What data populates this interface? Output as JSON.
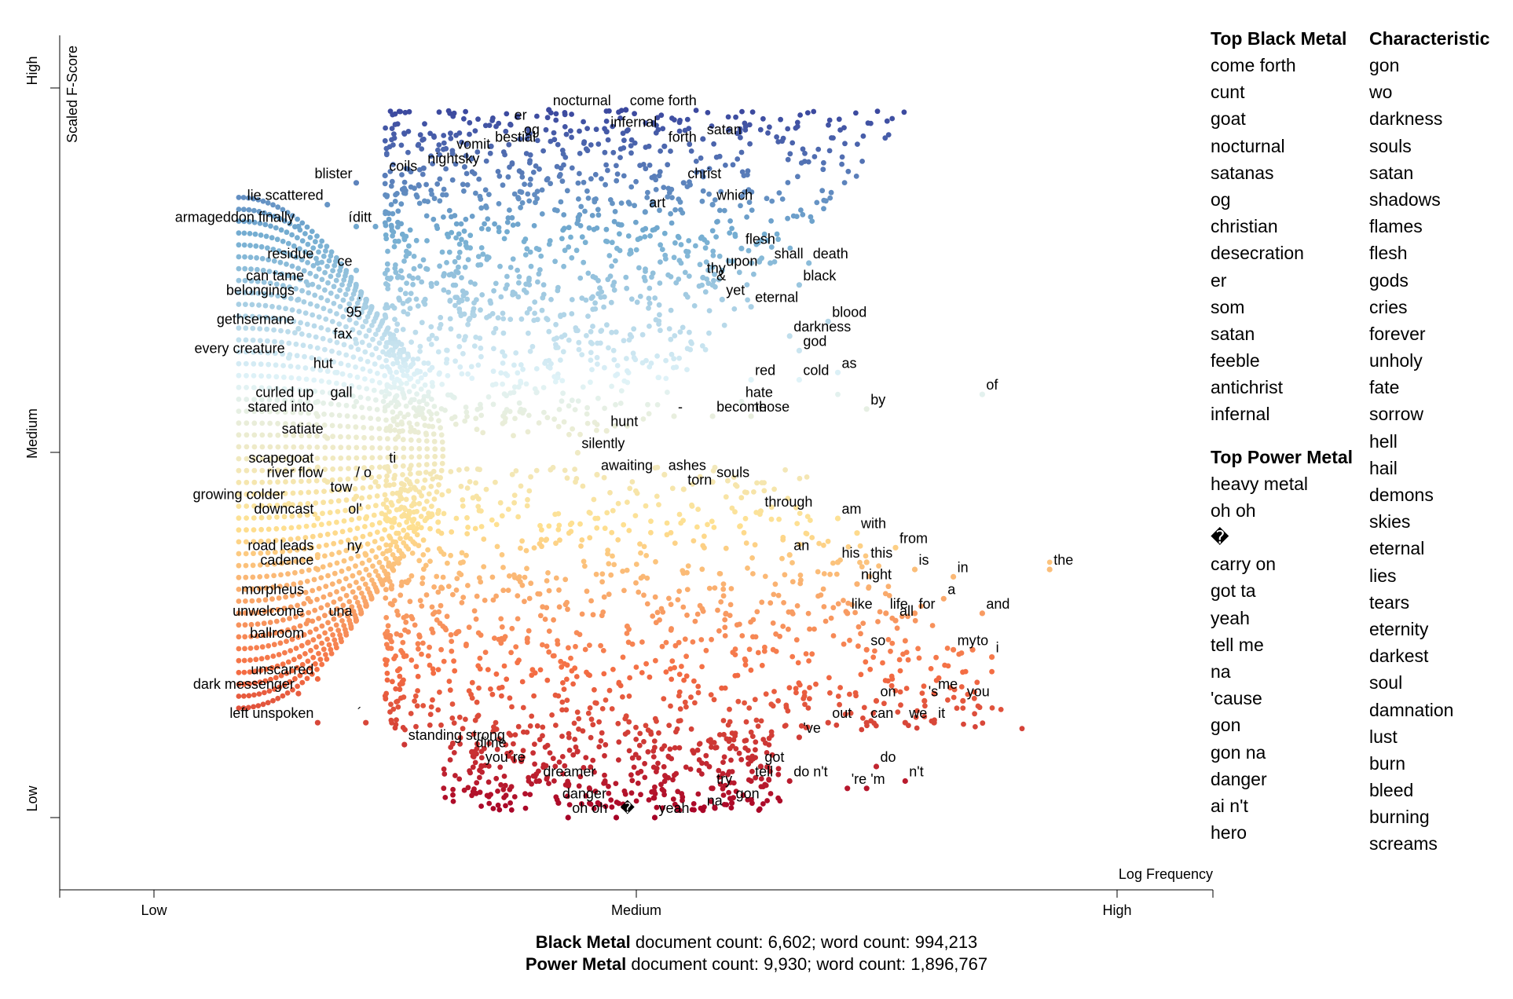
{
  "chart_data": {
    "type": "scatter",
    "xlabel": "Log Frequency",
    "ylabel": "Scaled F-Score",
    "x_ticks": [
      "Low",
      "Medium",
      "High"
    ],
    "y_ticks": [
      "Low",
      "Medium",
      "High"
    ],
    "xlim": [
      0,
      1
    ],
    "ylim": [
      0,
      1
    ],
    "color_scale": [
      "#a50026",
      "#f46d43",
      "#fee090",
      "#e0f3f8",
      "#74add1",
      "#313695"
    ],
    "labeled_points": [
      {
        "term": "nocturnal",
        "x": 0.41,
        "y": 0.97
      },
      {
        "term": "come forth",
        "x": 0.49,
        "y": 0.97
      },
      {
        "term": "er",
        "x": 0.37,
        "y": 0.95
      },
      {
        "term": "infernal",
        "x": 0.47,
        "y": 0.94
      },
      {
        "term": "vomit",
        "x": 0.31,
        "y": 0.91
      },
      {
        "term": "bestial",
        "x": 0.35,
        "y": 0.92
      },
      {
        "term": "og",
        "x": 0.38,
        "y": 0.93
      },
      {
        "term": "forth",
        "x": 0.53,
        "y": 0.92
      },
      {
        "term": "satan",
        "x": 0.57,
        "y": 0.93
      },
      {
        "term": "nightsky",
        "x": 0.28,
        "y": 0.89
      },
      {
        "term": "coils",
        "x": 0.24,
        "y": 0.88
      },
      {
        "term": "blister",
        "x": 0.21,
        "y": 0.87
      },
      {
        "term": "christ",
        "x": 0.55,
        "y": 0.87
      },
      {
        "term": "lie scattered",
        "x": 0.18,
        "y": 0.84
      },
      {
        "term": "which",
        "x": 0.58,
        "y": 0.84
      },
      {
        "term": "art",
        "x": 0.51,
        "y": 0.83
      },
      {
        "term": "armageddon finally",
        "x": 0.15,
        "y": 0.81
      },
      {
        "term": "í",
        "x": 0.21,
        "y": 0.81
      },
      {
        "term": "ditt",
        "x": 0.23,
        "y": 0.81
      },
      {
        "term": "residue",
        "x": 0.17,
        "y": 0.76
      },
      {
        "term": "ce",
        "x": 0.21,
        "y": 0.75
      },
      {
        "term": "flesh",
        "x": 0.61,
        "y": 0.78
      },
      {
        "term": "upon",
        "x": 0.59,
        "y": 0.75
      },
      {
        "term": "shall",
        "x": 0.64,
        "y": 0.76
      },
      {
        "term": "death",
        "x": 0.68,
        "y": 0.76
      },
      {
        "term": "thy",
        "x": 0.57,
        "y": 0.74
      },
      {
        "term": "can tame",
        "x": 0.16,
        "y": 0.73
      },
      {
        "term": "&",
        "x": 0.58,
        "y": 0.73
      },
      {
        "term": "black",
        "x": 0.67,
        "y": 0.73
      },
      {
        "term": "belongings",
        "x": 0.15,
        "y": 0.71
      },
      {
        "term": "·",
        "x": 0.22,
        "y": 0.7
      },
      {
        "term": "yet",
        "x": 0.59,
        "y": 0.71
      },
      {
        "term": "eternal",
        "x": 0.62,
        "y": 0.7
      },
      {
        "term": "gethsemane",
        "x": 0.15,
        "y": 0.67
      },
      {
        "term": "95",
        "x": 0.22,
        "y": 0.68
      },
      {
        "term": "blood",
        "x": 0.7,
        "y": 0.68
      },
      {
        "term": "darkness",
        "x": 0.66,
        "y": 0.66
      },
      {
        "term": "fax",
        "x": 0.21,
        "y": 0.65
      },
      {
        "term": "every creature",
        "x": 0.14,
        "y": 0.63
      },
      {
        "term": "god",
        "x": 0.67,
        "y": 0.64
      },
      {
        "term": "as",
        "x": 0.71,
        "y": 0.61
      },
      {
        "term": "hut",
        "x": 0.19,
        "y": 0.61
      },
      {
        "term": "red",
        "x": 0.62,
        "y": 0.6
      },
      {
        "term": "cold",
        "x": 0.67,
        "y": 0.6
      },
      {
        "term": "of",
        "x": 0.86,
        "y": 0.58
      },
      {
        "term": "curled up",
        "x": 0.17,
        "y": 0.57
      },
      {
        "term": "gall",
        "x": 0.21,
        "y": 0.57
      },
      {
        "term": "hate",
        "x": 0.61,
        "y": 0.57
      },
      {
        "term": "by",
        "x": 0.74,
        "y": 0.56
      },
      {
        "term": "stared into",
        "x": 0.17,
        "y": 0.55
      },
      {
        "term": "-",
        "x": 0.54,
        "y": 0.55
      },
      {
        "term": "become",
        "x": 0.58,
        "y": 0.55
      },
      {
        "term": "those",
        "x": 0.62,
        "y": 0.55
      },
      {
        "term": "hunt",
        "x": 0.47,
        "y": 0.53
      },
      {
        "term": "satiate",
        "x": 0.18,
        "y": 0.52
      },
      {
        "term": "silently",
        "x": 0.44,
        "y": 0.5
      },
      {
        "term": "scapegoat",
        "x": 0.17,
        "y": 0.48
      },
      {
        "term": "awaiting",
        "x": 0.46,
        "y": 0.47
      },
      {
        "term": "ti",
        "x": 0.24,
        "y": 0.48
      },
      {
        "term": "river flow",
        "x": 0.18,
        "y": 0.46
      },
      {
        "term": "/ o",
        "x": 0.23,
        "y": 0.46
      },
      {
        "term": "ashes",
        "x": 0.53,
        "y": 0.47
      },
      {
        "term": "souls",
        "x": 0.58,
        "y": 0.46
      },
      {
        "term": "torn",
        "x": 0.55,
        "y": 0.45
      },
      {
        "term": "tow",
        "x": 0.21,
        "y": 0.44
      },
      {
        "term": "growing colder",
        "x": 0.14,
        "y": 0.43
      },
      {
        "term": "through",
        "x": 0.63,
        "y": 0.42
      },
      {
        "term": "am",
        "x": 0.71,
        "y": 0.41
      },
      {
        "term": "downcast",
        "x": 0.17,
        "y": 0.41
      },
      {
        "term": "ol'",
        "x": 0.22,
        "y": 0.41
      },
      {
        "term": "with",
        "x": 0.73,
        "y": 0.39
      },
      {
        "term": "from",
        "x": 0.77,
        "y": 0.37
      },
      {
        "term": "an",
        "x": 0.66,
        "y": 0.36
      },
      {
        "term": "his",
        "x": 0.71,
        "y": 0.35
      },
      {
        "term": "this",
        "x": 0.74,
        "y": 0.35
      },
      {
        "term": "road leads",
        "x": 0.17,
        "y": 0.36
      },
      {
        "term": "ny",
        "x": 0.22,
        "y": 0.36
      },
      {
        "term": "the",
        "x": 0.93,
        "y": 0.34
      },
      {
        "term": "is",
        "x": 0.79,
        "y": 0.34
      },
      {
        "term": "cadence",
        "x": 0.17,
        "y": 0.34
      },
      {
        "term": "in",
        "x": 0.83,
        "y": 0.33
      },
      {
        "term": "night",
        "x": 0.73,
        "y": 0.32
      },
      {
        "term": "morpheus",
        "x": 0.16,
        "y": 0.3
      },
      {
        "term": "a",
        "x": 0.82,
        "y": 0.3
      },
      {
        "term": "unwelcome",
        "x": 0.16,
        "y": 0.27
      },
      {
        "term": "una",
        "x": 0.21,
        "y": 0.27
      },
      {
        "term": "like",
        "x": 0.72,
        "y": 0.28
      },
      {
        "term": "life",
        "x": 0.76,
        "y": 0.28
      },
      {
        "term": "for",
        "x": 0.79,
        "y": 0.28
      },
      {
        "term": "and",
        "x": 0.86,
        "y": 0.28
      },
      {
        "term": "all",
        "x": 0.77,
        "y": 0.27
      },
      {
        "term": "ballroom",
        "x": 0.16,
        "y": 0.24
      },
      {
        "term": "my",
        "x": 0.83,
        "y": 0.23
      },
      {
        "term": "so",
        "x": 0.74,
        "y": 0.23
      },
      {
        "term": "to",
        "x": 0.85,
        "y": 0.23
      },
      {
        "term": "i",
        "x": 0.87,
        "y": 0.22
      },
      {
        "term": "unscarred",
        "x": 0.17,
        "y": 0.19
      },
      {
        "term": "me",
        "x": 0.81,
        "y": 0.17
      },
      {
        "term": "dark messenger",
        "x": 0.15,
        "y": 0.17
      },
      {
        "term": "you",
        "x": 0.84,
        "y": 0.16
      },
      {
        "term": "'s",
        "x": 0.8,
        "y": 0.16
      },
      {
        "term": "on",
        "x": 0.75,
        "y": 0.16
      },
      {
        "term": "left unspoken",
        "x": 0.17,
        "y": 0.13
      },
      {
        "term": "´",
        "x": 0.22,
        "y": 0.13
      },
      {
        "term": "out",
        "x": 0.7,
        "y": 0.13
      },
      {
        "term": "can",
        "x": 0.74,
        "y": 0.13
      },
      {
        "term": "we",
        "x": 0.78,
        "y": 0.13
      },
      {
        "term": "it",
        "x": 0.81,
        "y": 0.13
      },
      {
        "term": "'ve",
        "x": 0.67,
        "y": 0.11
      },
      {
        "term": "standing strong",
        "x": 0.26,
        "y": 0.1
      },
      {
        "term": "dime",
        "x": 0.33,
        "y": 0.09
      },
      {
        "term": "you´re",
        "x": 0.34,
        "y": 0.07
      },
      {
        "term": "got",
        "x": 0.63,
        "y": 0.07
      },
      {
        "term": "do",
        "x": 0.75,
        "y": 0.07
      },
      {
        "term": "dreamer",
        "x": 0.4,
        "y": 0.05
      },
      {
        "term": "tell",
        "x": 0.62,
        "y": 0.05
      },
      {
        "term": "do n't",
        "x": 0.66,
        "y": 0.05
      },
      {
        "term": "n't",
        "x": 0.78,
        "y": 0.05
      },
      {
        "term": "'re",
        "x": 0.72,
        "y": 0.04
      },
      {
        "term": "'m",
        "x": 0.74,
        "y": 0.04
      },
      {
        "term": "try",
        "x": 0.58,
        "y": 0.04
      },
      {
        "term": "danger",
        "x": 0.42,
        "y": 0.02
      },
      {
        "term": "gon",
        "x": 0.6,
        "y": 0.02
      },
      {
        "term": "na",
        "x": 0.57,
        "y": 0.01
      },
      {
        "term": "oh oh",
        "x": 0.43,
        "y": 0.0
      },
      {
        "term": "�",
        "x": 0.48,
        "y": 0.0
      },
      {
        "term": "yeah",
        "x": 0.52,
        "y": 0.0
      }
    ]
  },
  "side": {
    "top_black_title": "Top Black Metal",
    "top_black": [
      "come forth",
      "cunt",
      "goat",
      "nocturnal",
      "satanas",
      "og",
      "christian",
      "desecration",
      "er",
      "som",
      "satan",
      "feeble",
      "antichrist",
      "infernal"
    ],
    "top_power_title": "Top Power Metal",
    "top_power": [
      "heavy metal",
      "oh oh",
      "�",
      "carry on",
      "got ta",
      "yeah",
      "tell me",
      "na",
      "'cause",
      "gon",
      "gon na",
      "danger",
      "ai n't",
      "hero"
    ],
    "characteristic_title": "Characteristic",
    "characteristic": [
      "gon",
      "wo",
      "darkness",
      "souls",
      "satan",
      "shadows",
      "flames",
      "flesh",
      "gods",
      "cries",
      "forever",
      "unholy",
      "fate",
      "sorrow",
      "hell",
      "hail",
      "demons",
      "skies",
      "eternal",
      "lies",
      "tears",
      "eternity",
      "darkest",
      "soul",
      "damnation",
      "lust",
      "burn",
      "bleed",
      "burning",
      "screams"
    ]
  },
  "footer": {
    "cat1_name": "Black Metal",
    "cat1_stats": " document count: 6,602; word count: 994,213",
    "cat2_name": "Power Metal",
    "cat2_stats": " document count: 9,930; word count: 1,896,767"
  }
}
